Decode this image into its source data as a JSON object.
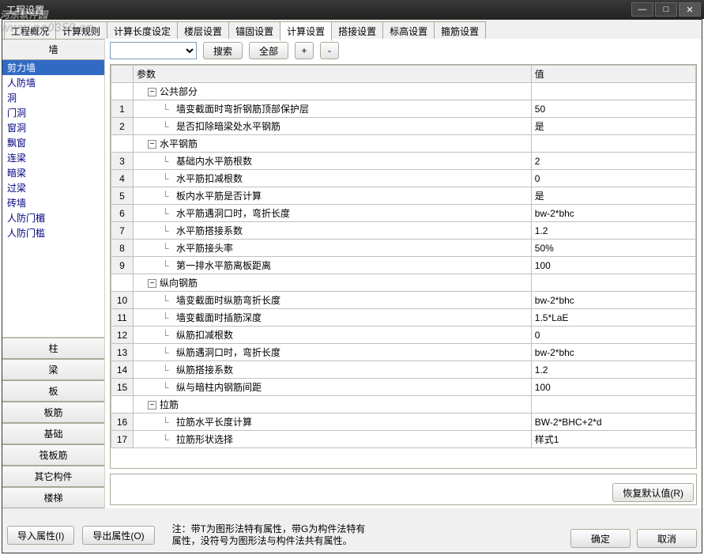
{
  "window": {
    "title": "工程设置"
  },
  "watermark": {
    "line1": "河东软件园",
    "line2": "www.pc0359.cn"
  },
  "tabs": {
    "items": [
      "工程概况",
      "计算规则",
      "计算长度设定",
      "楼层设置",
      "锚固设置",
      "计算设置",
      "搭接设置",
      "标高设置",
      "箍筋设置"
    ],
    "active_index": 5
  },
  "sidebar": {
    "top_header": "墙",
    "tree": [
      "剪力墙",
      "人防墙",
      "洞",
      "门洞",
      "窗洞",
      "飘窗",
      "连梁",
      "暗梁",
      "过梁",
      "砖墙",
      "人防门楣",
      "人防门槛"
    ],
    "tree_selected_index": 0,
    "categories": [
      "柱",
      "梁",
      "板",
      "板筋",
      "基础",
      "筏板筋",
      "其它构件",
      "楼梯"
    ]
  },
  "toolbar": {
    "dropdown_value": "",
    "search_label": "搜索",
    "all_label": "全部",
    "plus_label": "+",
    "minus_label": "-"
  },
  "grid": {
    "columns": [
      "参数",
      "值"
    ],
    "groups": [
      {
        "label": "公共部分",
        "rows": [
          {
            "n": "1",
            "param": "墙变截面时弯折钢筋顶部保护层",
            "value": "50"
          },
          {
            "n": "2",
            "param": "是否扣除暗梁处水平钢筋",
            "value": "是"
          }
        ]
      },
      {
        "label": "水平钢筋",
        "rows": [
          {
            "n": "3",
            "param": "基础内水平筋根数",
            "value": "2"
          },
          {
            "n": "4",
            "param": "水平筋扣减根数",
            "value": "0"
          },
          {
            "n": "5",
            "param": "板内水平筋是否计算",
            "value": "是"
          },
          {
            "n": "6",
            "param": "水平筋遇洞口时，弯折长度",
            "value": "bw-2*bhc"
          },
          {
            "n": "7",
            "param": "水平筋搭接系数",
            "value": "1.2"
          },
          {
            "n": "8",
            "param": "水平筋接头率",
            "value": "50%"
          },
          {
            "n": "9",
            "param": "第一排水平筋离板距离",
            "value": "100"
          }
        ]
      },
      {
        "label": "纵向钢筋",
        "rows": [
          {
            "n": "10",
            "param": "墙变截面时纵筋弯折长度",
            "value": "bw-2*bhc"
          },
          {
            "n": "11",
            "param": "墙变截面时插筋深度",
            "value": "1.5*LaE"
          },
          {
            "n": "12",
            "param": "纵筋扣减根数",
            "value": "0"
          },
          {
            "n": "13",
            "param": "纵筋遇洞口时，弯折长度",
            "value": "bw-2*bhc"
          },
          {
            "n": "14",
            "param": "纵筋搭接系数",
            "value": "1.2"
          },
          {
            "n": "15",
            "param": "纵与暗柱内钢筋间距",
            "value": "100"
          }
        ]
      },
      {
        "label": "拉筋",
        "rows": [
          {
            "n": "16",
            "param": "拉筋水平长度计算",
            "value": "BW-2*BHC+2*d"
          },
          {
            "n": "17",
            "param": "拉筋形状选择",
            "value": "样式1"
          }
        ]
      }
    ]
  },
  "footer": {
    "import_label": "导入属性(I)",
    "export_label": "导出属性(O)",
    "note_line1": "注：带T为图形法特有属性，带G为构件法特有",
    "note_line2": "属性，没符号为图形法与构件法共有属性。",
    "restore_label": "恢复默认值(R)",
    "ok_label": "确定",
    "cancel_label": "取消"
  }
}
